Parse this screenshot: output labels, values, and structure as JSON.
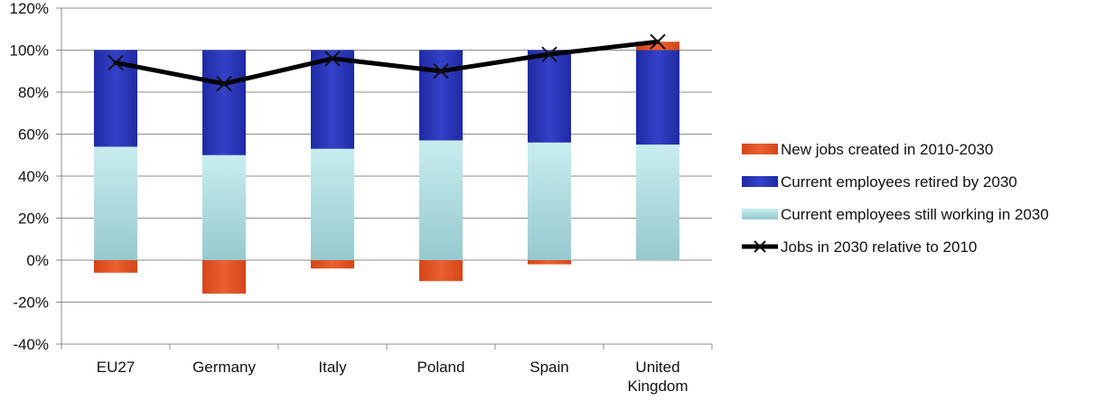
{
  "colors": {
    "new_jobs": "#E2531E",
    "retired": "#2A35B5",
    "still_working": "#9DD3D8",
    "line": "#000000",
    "grid": "#8C8C8C",
    "axis": "#8C8C8C"
  },
  "chart_data": {
    "type": "bar",
    "stacked": true,
    "categories": [
      "EU27",
      "Germany",
      "Italy",
      "Poland",
      "Spain",
      [
        "United",
        "Kingdom"
      ]
    ],
    "series": [
      {
        "name": "Current employees still working in 2030",
        "kind": "bar",
        "color_key": "still_working",
        "values": [
          54,
          50,
          53,
          57,
          56,
          55
        ]
      },
      {
        "name": "Current employees retired by 2030",
        "kind": "bar",
        "color_key": "retired",
        "values": [
          46,
          50,
          47,
          43,
          44,
          45
        ]
      },
      {
        "name": "New jobs created in 2010-2030",
        "kind": "bar",
        "color_key": "new_jobs",
        "values": [
          -6,
          -16,
          -4,
          -10,
          -2,
          4
        ]
      },
      {
        "name": "Jobs in 2030 relative to 2010",
        "kind": "line",
        "marker": "x",
        "color_key": "line",
        "values": [
          94,
          84,
          96,
          90,
          98,
          104
        ]
      }
    ],
    "y_ticks": [
      "-40%",
      "-20%",
      "0%",
      "20%",
      "40%",
      "60%",
      "80%",
      "100%",
      "120%"
    ],
    "ylim": [
      -40,
      120
    ],
    "y_unit": "%",
    "grid": true,
    "legend": {
      "placement": "right",
      "order": [
        {
          "label": "New jobs created in 2010-2030",
          "kind": "bar",
          "color_key": "new_jobs"
        },
        {
          "label": "Current employees retired by 2030",
          "kind": "bar",
          "color_key": "retired"
        },
        {
          "label": "Current employees still working in 2030",
          "kind": "bar",
          "color_key": "still_working"
        },
        {
          "label": "Jobs in 2030 relative to 2010",
          "kind": "line",
          "color_key": "line"
        }
      ]
    }
  }
}
